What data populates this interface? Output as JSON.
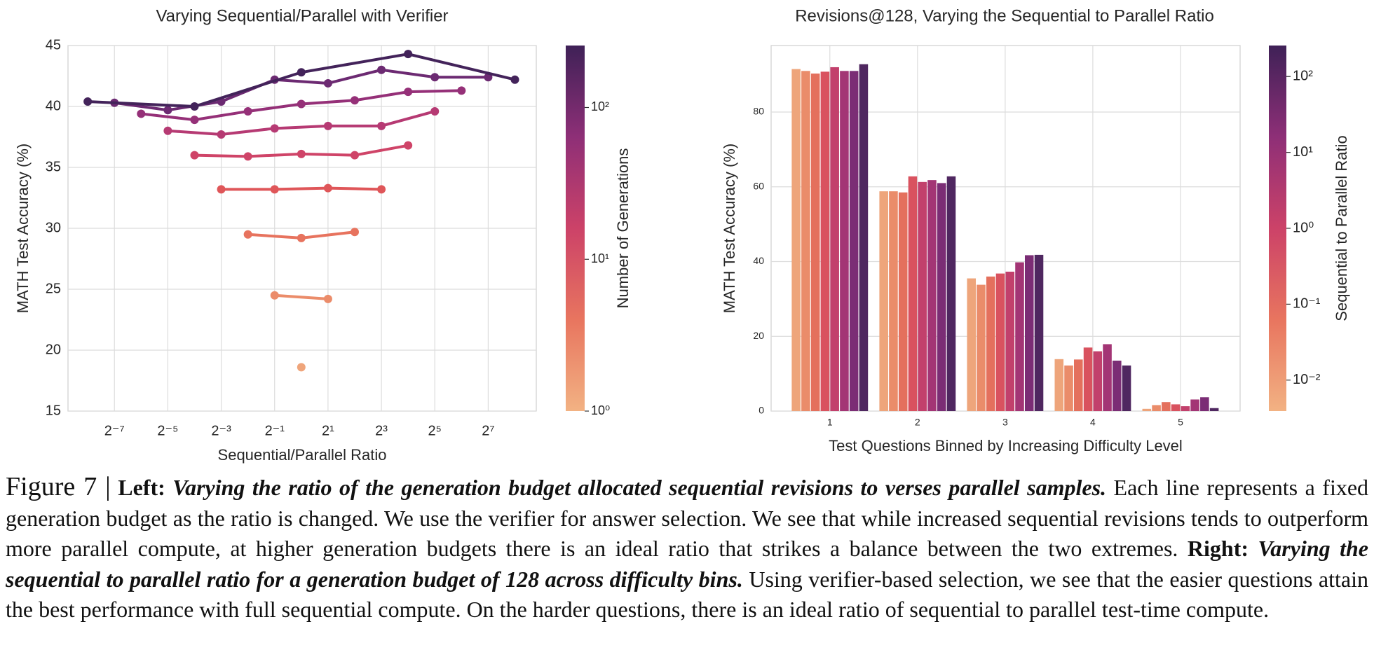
{
  "chart_data": [
    {
      "type": "line",
      "title": "Varying Sequential/Parallel with Verifier",
      "xlabel": "Sequential/Parallel Ratio",
      "ylabel": "MATH Test Accuracy (%)",
      "xscale": "log",
      "xlim": [
        0.00234,
        446
      ],
      "xticks": [
        {
          "value": 0.0078125,
          "label": "2⁻⁷"
        },
        {
          "value": 0.03125,
          "label": "2⁻⁵"
        },
        {
          "value": 0.125,
          "label": "2⁻³"
        },
        {
          "value": 0.5,
          "label": "2⁻¹"
        },
        {
          "value": 2,
          "label": "2¹"
        },
        {
          "value": 8,
          "label": "2³"
        },
        {
          "value": 32,
          "label": "2⁵"
        },
        {
          "value": 128,
          "label": "2⁷"
        }
      ],
      "ylim": [
        15,
        45
      ],
      "yticks": [
        15,
        20,
        25,
        30,
        35,
        40,
        45
      ],
      "grid": true,
      "series": [
        {
          "color": "#efa57b",
          "x": [
            1
          ],
          "values": [
            18.6
          ]
        },
        {
          "color": "#eb8c6a",
          "x": [
            0.5,
            2
          ],
          "values": [
            24.5,
            24.2
          ]
        },
        {
          "color": "#e7735e",
          "x": [
            0.25,
            1,
            4
          ],
          "values": [
            29.5,
            29.2,
            29.7
          ]
        },
        {
          "color": "#df5659",
          "x": [
            0.125,
            0.5,
            2,
            8
          ],
          "values": [
            33.2,
            33.2,
            33.3,
            33.2
          ]
        },
        {
          "color": "#cf4468",
          "x": [
            0.0625,
            0.25,
            1,
            4,
            16
          ],
          "values": [
            36.0,
            35.9,
            36.1,
            36.0,
            36.8
          ]
        },
        {
          "color": "#b63a73",
          "x": [
            0.03125,
            0.125,
            0.5,
            2,
            8,
            32
          ],
          "values": [
            38.0,
            37.7,
            38.2,
            38.4,
            38.4,
            39.6
          ]
        },
        {
          "color": "#953078",
          "x": [
            0.015625,
            0.0625,
            0.25,
            1,
            4,
            16,
            64
          ],
          "values": [
            39.4,
            38.9,
            39.6,
            40.2,
            40.5,
            41.2,
            41.3
          ]
        },
        {
          "color": "#6c2a72",
          "x": [
            0.0078125,
            0.03125,
            0.125,
            0.5,
            2,
            8,
            32,
            128
          ],
          "values": [
            40.3,
            39.7,
            40.4,
            42.2,
            41.9,
            43.0,
            42.4,
            42.4
          ]
        },
        {
          "color": "#43235a",
          "x": [
            0.00390625,
            0.0625,
            1,
            16,
            256
          ],
          "values": [
            40.4,
            40.0,
            42.8,
            44.3,
            42.2
          ]
        }
      ],
      "colorbar": {
        "label": "Number of Generations",
        "scale": "log",
        "lim": [
          1,
          256
        ],
        "ticks": [
          {
            "value": 1,
            "label": "10⁰"
          },
          {
            "value": 10,
            "label": "10¹"
          },
          {
            "value": 100,
            "label": "10²"
          }
        ],
        "colors": [
          "#f2b283",
          "#e8755f",
          "#cc4268",
          "#8e2f77",
          "#3f2157"
        ]
      }
    },
    {
      "type": "bar",
      "title": "Revisions@128, Varying the Sequential to Parallel Ratio",
      "xlabel": "Test Questions Binned by Increasing Difficulty Level",
      "ylabel": "MATH Test Accuracy (%)",
      "categories": [
        "1",
        "2",
        "3",
        "4",
        "5"
      ],
      "ylim": [
        0,
        97.8
      ],
      "yticks": [
        0,
        20,
        40,
        60,
        80
      ],
      "grid": true,
      "series": [
        {
          "color": "#eea57b",
          "values": [
            91.5,
            58.8,
            35.5,
            13.9,
            0.6
          ]
        },
        {
          "color": "#ea8c6a",
          "values": [
            91.0,
            58.8,
            33.8,
            12.2,
            1.6
          ]
        },
        {
          "color": "#e4705d",
          "values": [
            90.3,
            58.5,
            36.0,
            13.8,
            2.4
          ]
        },
        {
          "color": "#d9525f",
          "values": [
            90.8,
            62.8,
            36.8,
            17.0,
            1.8
          ]
        },
        {
          "color": "#c2406c",
          "values": [
            92.0,
            61.3,
            37.3,
            16.0,
            1.3
          ]
        },
        {
          "color": "#a33575",
          "values": [
            91.0,
            61.8,
            39.8,
            17.9,
            3.1
          ]
        },
        {
          "color": "#7b2d75",
          "values": [
            91.0,
            61.0,
            41.7,
            13.5,
            3.7
          ]
        },
        {
          "color": "#4f2760",
          "values": [
            92.8,
            62.8,
            41.8,
            12.2,
            0.8
          ]
        }
      ],
      "colorbar": {
        "label": "Sequential to Parallel Ratio",
        "scale": "log",
        "lim": [
          0.00390625,
          256
        ],
        "ticks": [
          {
            "value": 0.01,
            "label": "10⁻²"
          },
          {
            "value": 0.1,
            "label": "10⁻¹"
          },
          {
            "value": 1,
            "label": "10⁰"
          },
          {
            "value": 10,
            "label": "10¹"
          },
          {
            "value": 100,
            "label": "10²"
          }
        ],
        "colors": [
          "#f2b283",
          "#e8755f",
          "#cc4268",
          "#8e2f77",
          "#3f2157"
        ]
      }
    }
  ],
  "caption": [
    "Figure 7 |",
    "Left:",
    "Varying the ratio of the generation budget allocated sequential revisions to verses parallel samples.",
    "Each line represents a fixed generation budget as the ratio is changed. We use the verifier for answer selection. We see that while increased sequential revisions tends to outperform more parallel compute, at higher generation budgets there is an ideal ratio that strikes a balance between the two extremes.",
    "Right:",
    "Varying the sequential to parallel ratio for a generation budget of 128 across difficulty bins.",
    "Using verifier-based selection, we see that the easier questions attain the best performance with full sequential compute. On the harder questions, there is an ideal ratio of sequential to parallel test-time compute."
  ]
}
